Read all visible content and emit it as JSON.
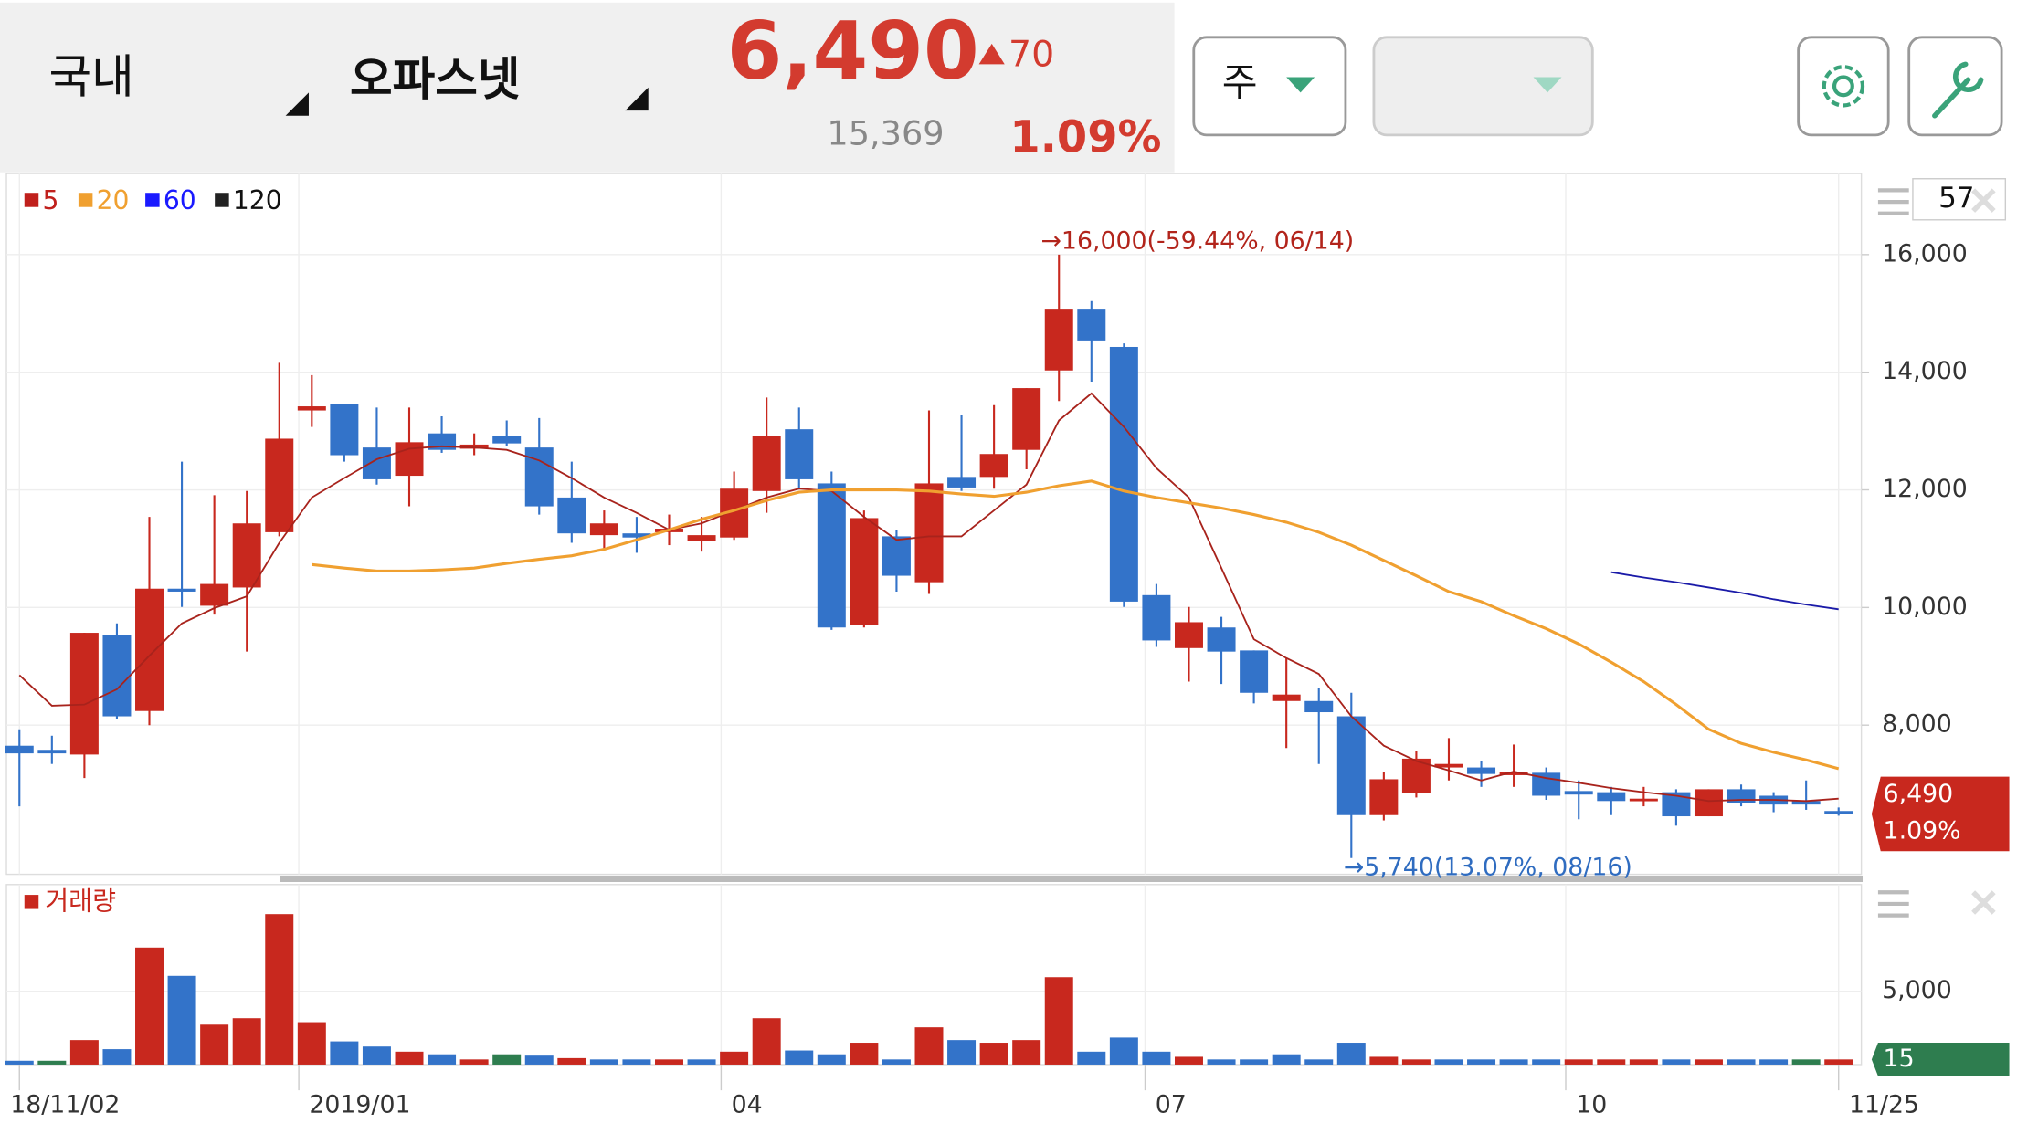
{
  "header": {
    "market": "국내",
    "stock": "오파스넷",
    "price": "6,490",
    "change": "70",
    "volume": "15,369",
    "change_pct": "1.09%",
    "period": "주",
    "count": "57"
  },
  "chart_data": [
    {
      "type": "candlestick",
      "open": [
        7650,
        7580,
        7500,
        9530,
        8240,
        10320,
        10030,
        10340,
        11280,
        13350,
        13460,
        12720,
        12240,
        12960,
        12700,
        12920,
        12720,
        11870,
        11230,
        11260,
        11280,
        11130,
        11190,
        11980,
        13030,
        12110,
        9700,
        11210,
        10430,
        12220,
        12220,
        12680,
        14030,
        15080,
        14430,
        10210,
        9310,
        9660,
        9270,
        8410,
        8410,
        8150,
        6470,
        6840,
        7280,
        7280,
        7150,
        7190,
        6880,
        6860,
        6710,
        6860,
        6450,
        6910,
        6800,
        6710,
        6540
      ],
      "high": [
        7930,
        7820,
        9570,
        9730,
        11540,
        12480,
        11910,
        11980,
        14160,
        13950,
        13460,
        13400,
        13400,
        13250,
        12960,
        13180,
        13220,
        12480,
        11650,
        11540,
        11580,
        11540,
        12310,
        13570,
        13400,
        12310,
        11650,
        11320,
        13350,
        13270,
        13440,
        13730,
        16000,
        15210,
        14490,
        10400,
        10010,
        9840,
        9270,
        9140,
        8630,
        8550,
        7210,
        7560,
        7780,
        7390,
        7670,
        7280,
        7060,
        6950,
        6950,
        6910,
        6910,
        6990,
        6860,
        7060,
        6600
      ],
      "low": [
        6620,
        7340,
        7100,
        8110,
        8000,
        10010,
        9880,
        9250,
        11210,
        13070,
        12480,
        12090,
        11720,
        12630,
        12590,
        12740,
        11580,
        11100,
        10990,
        10930,
        11060,
        10950,
        11150,
        11610,
        12020,
        9620,
        9660,
        10270,
        10230,
        11980,
        12020,
        12350,
        13510,
        13840,
        10010,
        9330,
        8740,
        8700,
        8370,
        7610,
        7340,
        5740,
        6380,
        6770,
        7060,
        6950,
        6950,
        6730,
        6400,
        6470,
        6620,
        6290,
        6450,
        6620,
        6520,
        6560,
        6460
      ],
      "close": [
        7520,
        7520,
        9570,
        8150,
        10320,
        10270,
        10400,
        11430,
        12870,
        13420,
        12590,
        12180,
        12810,
        12680,
        12770,
        12790,
        11720,
        11260,
        11430,
        11190,
        11340,
        11230,
        12020,
        12920,
        12180,
        9660,
        11520,
        10540,
        12110,
        12040,
        12610,
        13730,
        15080,
        14540,
        10100,
        9440,
        9750,
        9250,
        8550,
        8520,
        8220,
        6470,
        7080,
        7430,
        7340,
        7170,
        7210,
        6800,
        6820,
        6710,
        6750,
        6450,
        6910,
        6670,
        6650,
        6650,
        6490
      ],
      "up_color": "#c8281e",
      "down_color": "#3373c9",
      "series": [
        {
          "name": "5",
          "color": "#a8231c",
          "values": [
            8850,
            8330,
            8350,
            8610,
            9180,
            9730,
            9990,
            10190,
            11100,
            11870,
            12200,
            12520,
            12700,
            12740,
            12720,
            12680,
            12500,
            12200,
            11870,
            11610,
            11320,
            11430,
            11650,
            11870,
            12020,
            11980,
            11540,
            11150,
            11210,
            11210,
            11650,
            12090,
            13180,
            13640,
            13070,
            12370,
            11870,
            10670,
            9460,
            9140,
            8870,
            8150,
            7650,
            7390,
            7230,
            7060,
            7210,
            7100,
            7020,
            6930,
            6860,
            6800,
            6710,
            6730,
            6730,
            6710,
            6750
          ]
        },
        {
          "name": "20",
          "color": "#f0a030",
          "values": [
            null,
            null,
            null,
            null,
            null,
            null,
            null,
            null,
            null,
            10730,
            10670,
            10620,
            10620,
            10640,
            10670,
            10750,
            10820,
            10880,
            10990,
            11150,
            11320,
            11500,
            11650,
            11820,
            11960,
            12000,
            12000,
            12000,
            11980,
            11930,
            11890,
            11960,
            12070,
            12150,
            11980,
            11870,
            11780,
            11690,
            11580,
            11450,
            11280,
            11060,
            10800,
            10540,
            10270,
            10100,
            9860,
            9640,
            9380,
            9070,
            8740,
            8350,
            7930,
            7690,
            7540,
            7410,
            7260
          ]
        },
        {
          "name": "60",
          "color": "#1a1aa8",
          "values": [
            null,
            null,
            null,
            null,
            null,
            null,
            null,
            null,
            null,
            null,
            null,
            null,
            null,
            null,
            null,
            null,
            null,
            null,
            null,
            null,
            null,
            null,
            null,
            null,
            null,
            null,
            null,
            null,
            null,
            null,
            null,
            null,
            null,
            null,
            null,
            null,
            null,
            null,
            null,
            null,
            null,
            null,
            null,
            null,
            null,
            null,
            null,
            null,
            null,
            10600,
            10510,
            10430,
            10340,
            10250,
            10140,
            10050,
            9970
          ]
        },
        {
          "name": "120",
          "color": "#222222",
          "values": [
            null,
            null,
            null,
            null,
            null,
            null,
            null,
            null,
            null,
            null,
            null,
            null,
            null,
            null,
            null,
            null,
            null,
            null,
            null,
            null,
            null,
            null,
            null,
            null,
            null,
            null,
            null,
            null,
            null,
            null,
            null,
            null,
            null,
            null,
            null,
            null,
            null,
            null,
            null,
            null,
            null,
            null,
            null,
            null,
            null,
            null,
            null,
            null,
            null,
            null,
            null,
            null,
            null,
            null,
            null,
            null,
            null
          ]
        }
      ],
      "legend_colors": [
        "#c0201c",
        "#f0a030",
        "#1a1aff",
        "#222222"
      ],
      "ylim": [
        5464,
        17334
      ],
      "yticks": [
        {
          "value": 8000,
          "label": "8,000"
        },
        {
          "value": 10000,
          "label": "10,000"
        },
        {
          "value": 12000,
          "label": "12,000"
        },
        {
          "value": 14000,
          "label": "14,000"
        },
        {
          "value": 16000,
          "label": "16,000"
        }
      ],
      "xlim": [
        -0.4,
        56.7
      ],
      "xticks": [
        {
          "value": 0,
          "label": "18/11/02"
        },
        {
          "value": 8.6,
          "label": "2019/01"
        },
        {
          "value": 21.6,
          "label": "04"
        },
        {
          "value": 34.65,
          "label": "07"
        },
        {
          "value": 47.6,
          "label": "10"
        },
        {
          "value": 56,
          "label": "11/25"
        }
      ],
      "high_label": "→16,000(-59.44%, 06/14)",
      "low_label": "→5,740(13.07%, 08/16)",
      "last_price_label": "6,490",
      "last_change_label": "1.09%",
      "grid": true
    },
    {
      "type": "bar",
      "title": "거래량",
      "values": [
        260,
        260,
        1670,
        1050,
        7980,
        6050,
        2720,
        3160,
        10260,
        2890,
        1580,
        1230,
        880,
        700,
        350,
        700,
        610,
        440,
        350,
        350,
        350,
        350,
        880,
        3160,
        960,
        700,
        1490,
        350,
        2540,
        1670,
        1490,
        1670,
        5960,
        880,
        1840,
        880,
        530,
        350,
        350,
        700,
        350,
        1490,
        530,
        350,
        350,
        350,
        350,
        350,
        350,
        350,
        350,
        350,
        350,
        350,
        350,
        350,
        350
      ],
      "colors": [
        "#3373c9",
        "#2e7d4f",
        "#c8281e",
        "#3373c9",
        "#c8281e",
        "#3373c9",
        "#c8281e",
        "#c8281e",
        "#c8281e",
        "#c8281e",
        "#3373c9",
        "#3373c9",
        "#c8281e",
        "#3373c9",
        "#c8281e",
        "#2e7d4f",
        "#3373c9",
        "#c8281e",
        "#3373c9",
        "#3373c9",
        "#c8281e",
        "#3373c9",
        "#c8281e",
        "#c8281e",
        "#3373c9",
        "#3373c9",
        "#c8281e",
        "#3373c9",
        "#c8281e",
        "#3373c9",
        "#c8281e",
        "#c8281e",
        "#c8281e",
        "#3373c9",
        "#3373c9",
        "#3373c9",
        "#c8281e",
        "#3373c9",
        "#3373c9",
        "#3373c9",
        "#3373c9",
        "#3373c9",
        "#c8281e",
        "#c8281e",
        "#3373c9",
        "#3373c9",
        "#3373c9",
        "#3373c9",
        "#c8281e",
        "#c8281e",
        "#c8281e",
        "#3373c9",
        "#c8281e",
        "#3373c9",
        "#3373c9",
        "#2e7d4f",
        "#c8281e"
      ],
      "ylim": [
        0,
        12100
      ],
      "yticks": [
        {
          "value": 5000,
          "label": "5,000"
        }
      ],
      "last_label": "15",
      "grid": true
    }
  ]
}
